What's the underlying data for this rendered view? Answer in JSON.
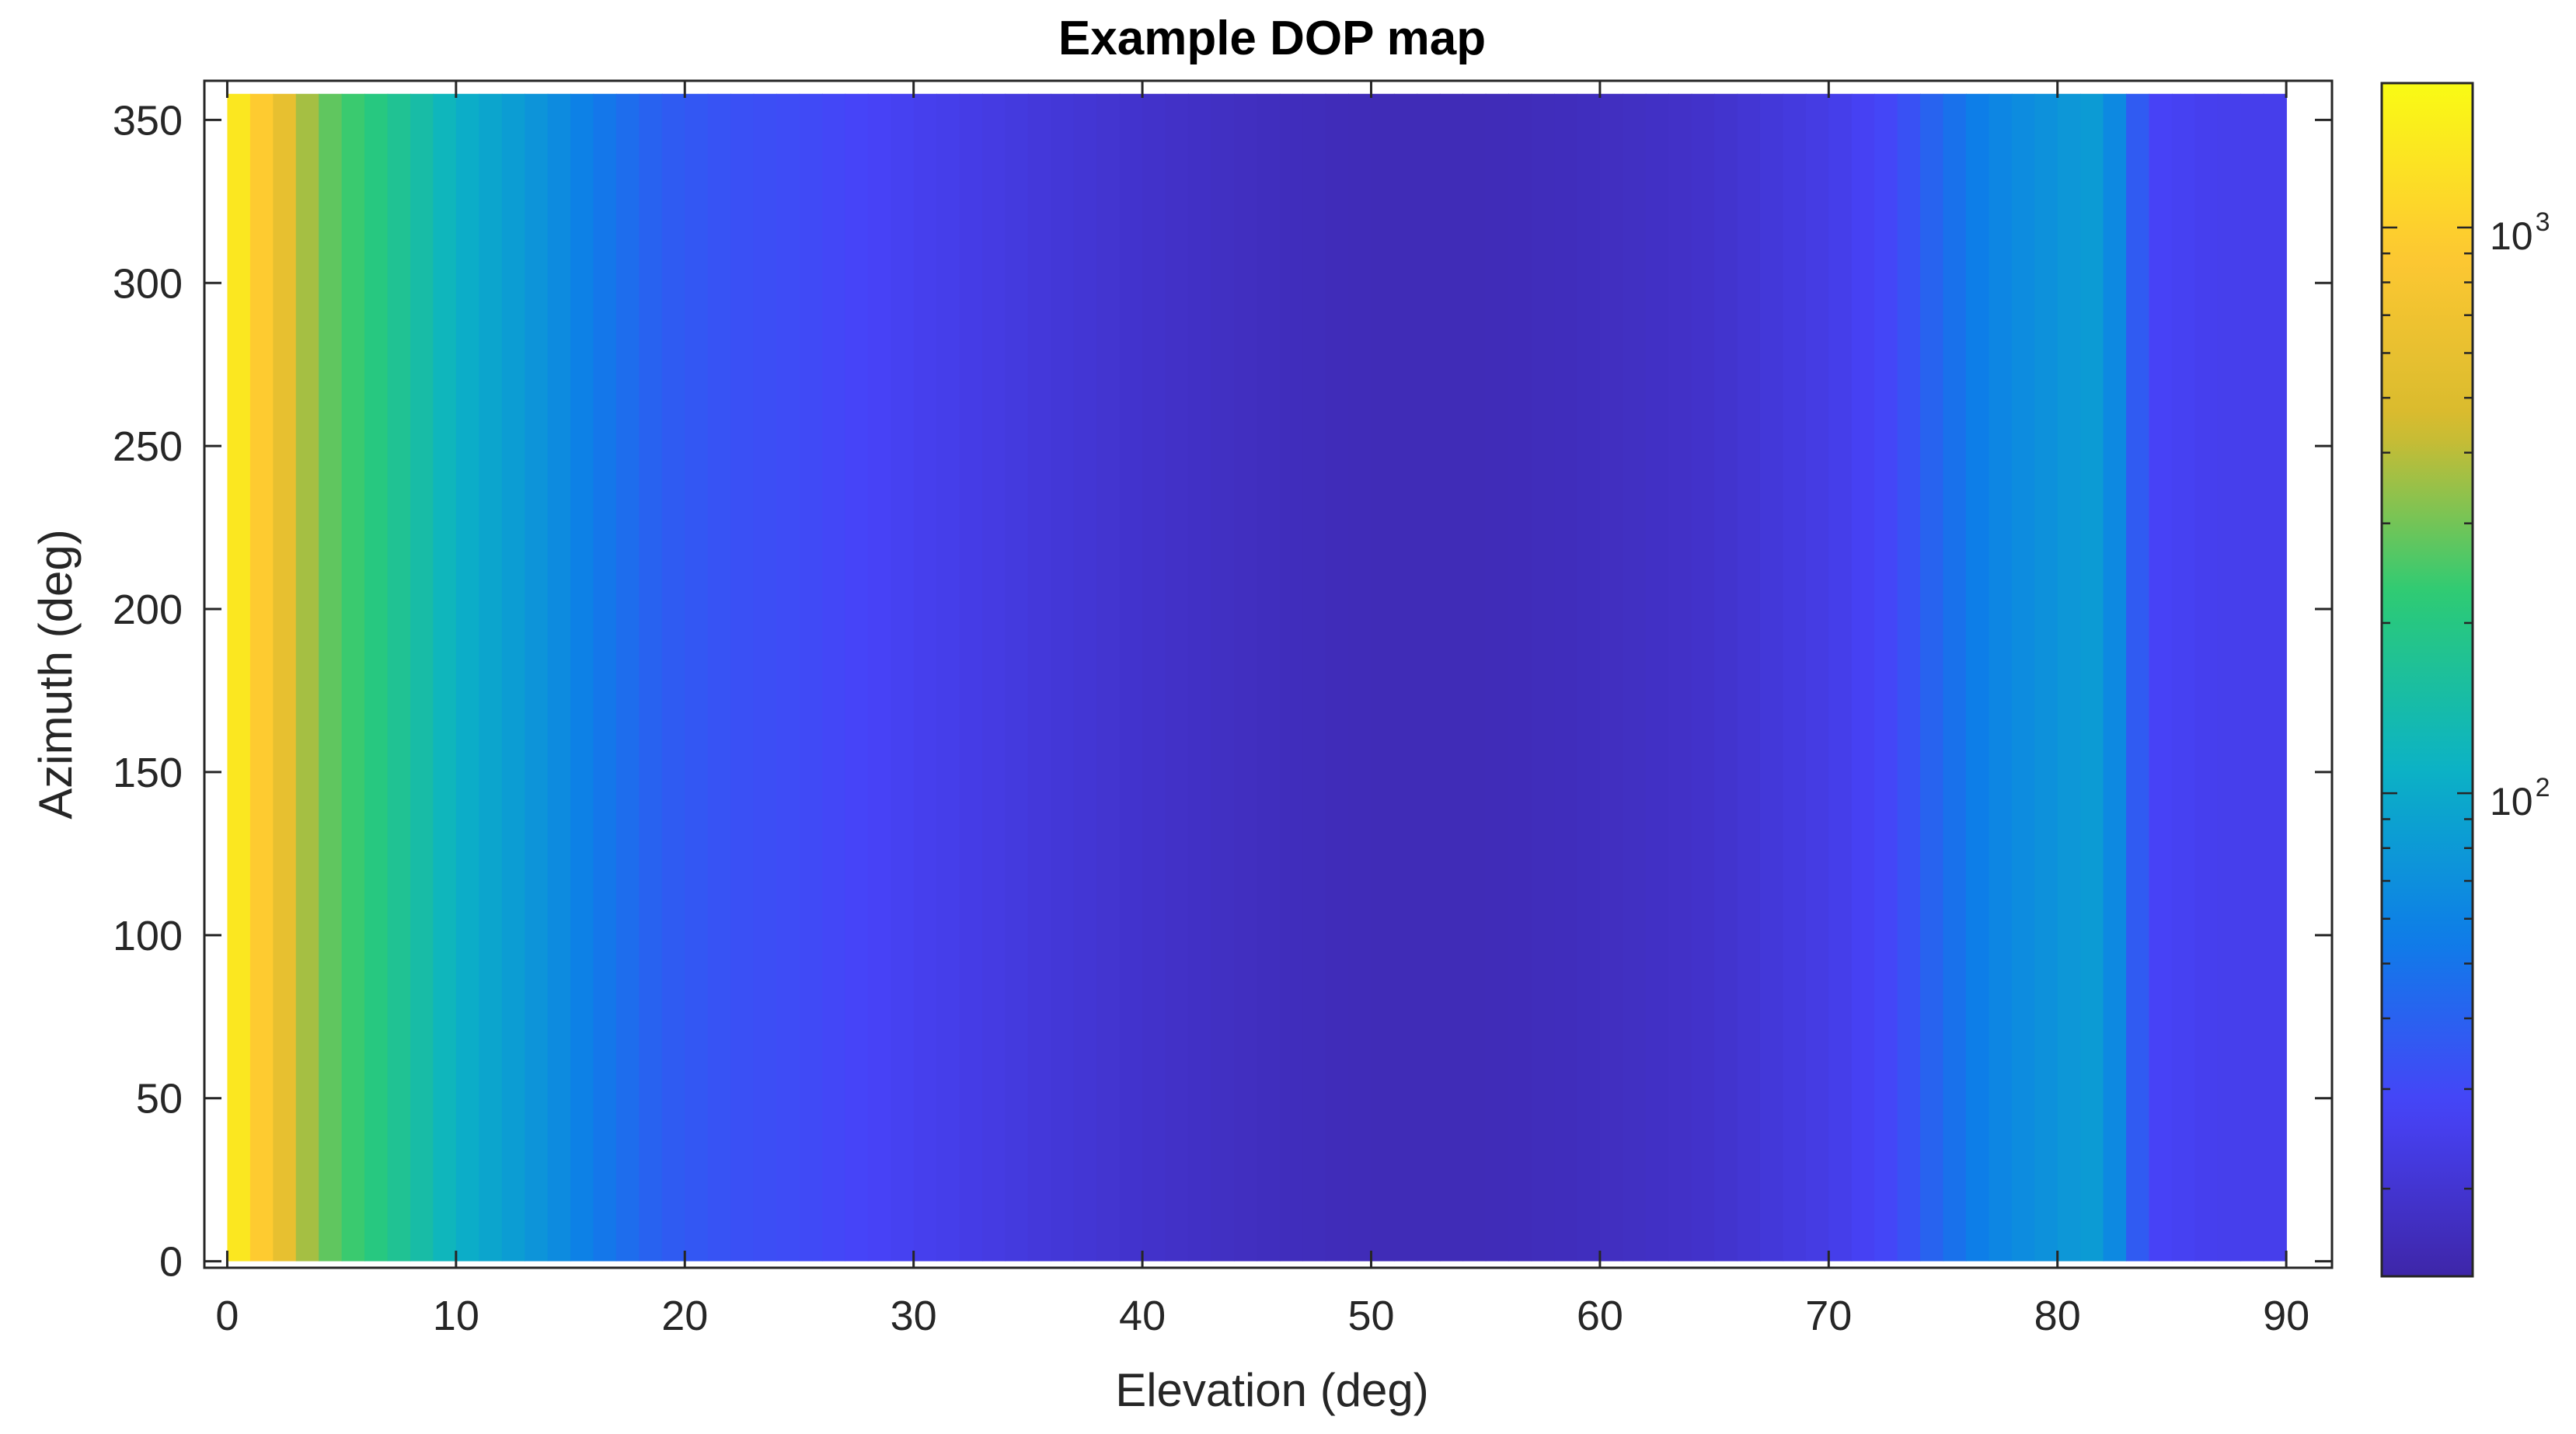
{
  "chart_data": {
    "type": "heatmap",
    "title": "Example DOP map",
    "xlabel": "Elevation (deg)",
    "ylabel": "Azimuth (deg)",
    "xlim": [
      -1,
      92
    ],
    "ylim": [
      -2,
      362
    ],
    "data_x_range": [
      0,
      90
    ],
    "data_y_range": [
      0,
      358
    ],
    "x_ticks": [
      0,
      10,
      20,
      30,
      40,
      50,
      60,
      70,
      80,
      90
    ],
    "y_ticks": [
      0,
      50,
      100,
      150,
      200,
      250,
      300,
      350
    ],
    "colorbar": {
      "scale": "log",
      "range": [
        14,
        1800
      ],
      "colormap": "parula",
      "ticks": [
        {
          "value": 100,
          "base": "10",
          "exponent": "2"
        },
        {
          "value": 1000,
          "base": "10",
          "exponent": "3"
        }
      ]
    },
    "colors": {
      "axis": "#262626",
      "colormap_stops": [
        "#3e26a8",
        "#4743f8",
        "#0d7ee8",
        "#0cb3c4",
        "#2ccb75",
        "#d7ba2e",
        "#fec832",
        "#f9fb14"
      ]
    },
    "profile": {
      "note_axis": "value along elevation, constant across azimuth",
      "x": [
        0,
        1,
        2,
        3,
        4,
        6,
        8,
        10,
        13,
        16,
        19,
        22,
        26,
        30,
        35,
        40,
        45,
        50,
        55,
        60,
        65,
        70,
        73,
        75,
        77,
        80,
        82,
        84,
        86,
        88,
        90
      ],
      "value": [
        1700,
        1100,
        800,
        450,
        300,
        220,
        160,
        110,
        80,
        55,
        38,
        33,
        30,
        26,
        22,
        19,
        17,
        16,
        16,
        17,
        19,
        24,
        30,
        45,
        60,
        75,
        85,
        28,
        26,
        25,
        25
      ]
    }
  }
}
